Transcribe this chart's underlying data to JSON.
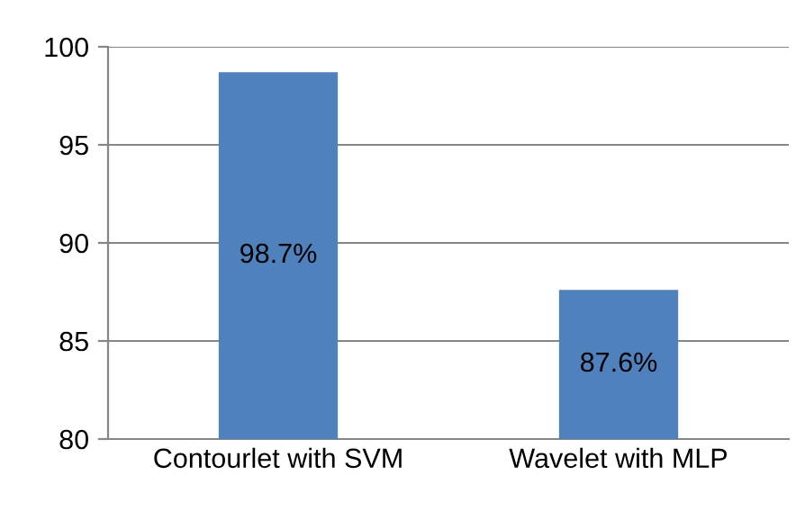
{
  "chart_data": {
    "type": "bar",
    "categories": [
      "Contourlet with SVM",
      "Wavelet with MLP"
    ],
    "values": [
      98.7,
      87.6
    ],
    "color": "#4f81bd",
    "value_labels": [
      "98.7%",
      "87.6%"
    ],
    "ylim": [
      80,
      100
    ],
    "yticks": [
      80,
      85,
      90,
      95,
      100
    ],
    "grid": "y",
    "legend": false
  }
}
